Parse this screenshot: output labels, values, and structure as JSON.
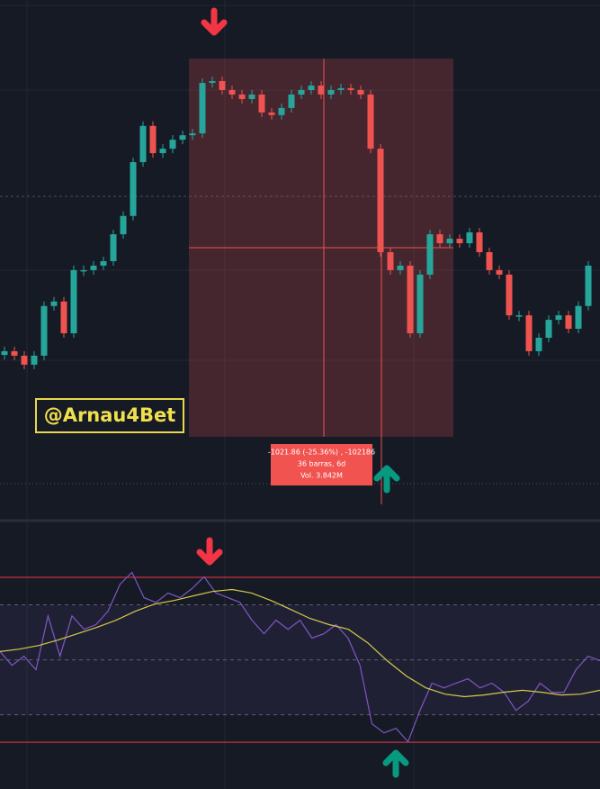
{
  "watermark": "@Arnau4Bet",
  "chart_data": [
    {
      "type": "candlestick",
      "ylim": [
        2900,
        4250
      ],
      "up_color": "#26a69a",
      "down_color": "#ef5350",
      "open": [
        3300,
        3310,
        3298,
        3274,
        3298,
        3431,
        3443,
        3358,
        3527,
        3527,
        3539,
        3551,
        3623,
        3672,
        3816,
        3913,
        3840,
        3852,
        3876,
        3888,
        3893,
        4028,
        4033,
        4009,
        3997,
        3985,
        3997,
        3949,
        3942,
        3961,
        3997,
        4009,
        4021,
        3997,
        4009,
        4014,
        4009,
        3997,
        3852,
        3575,
        3527,
        3539,
        3358,
        3515,
        3623,
        3599,
        3611,
        3599,
        3628,
        3575,
        3527,
        3515,
        3406,
        3406,
        3310,
        3346,
        3394,
        3406,
        3370,
        3431
      ],
      "close": [
        3310,
        3298,
        3274,
        3298,
        3431,
        3443,
        3358,
        3527,
        3527,
        3539,
        3551,
        3623,
        3672,
        3816,
        3913,
        3840,
        3852,
        3876,
        3888,
        3893,
        4028,
        4033,
        4009,
        3997,
        3985,
        3997,
        3949,
        3942,
        3961,
        3997,
        4009,
        4021,
        3997,
        4009,
        4014,
        4009,
        3997,
        3852,
        3575,
        3527,
        3539,
        3358,
        3515,
        3623,
        3599,
        3611,
        3599,
        3628,
        3575,
        3527,
        3515,
        3406,
        3406,
        3310,
        3346,
        3394,
        3406,
        3370,
        3431,
        3539
      ],
      "measure": {
        "from": 19,
        "to": 45,
        "high": 4093,
        "low": 3081,
        "label_lines": [
          "-1021.86 (-25.36%) , -102186",
          "36 barras, 6d",
          "Vol. 3.842M"
        ]
      }
    },
    {
      "type": "line",
      "ylim": [
        3,
        100
      ],
      "bands": [
        80,
        20
      ],
      "levels": [
        70,
        50,
        30
      ],
      "series": [
        {
          "color": "#7e57c2",
          "values": [
            53,
            48,
            51.3,
            46.4,
            66,
            51.3,
            66,
            61.1,
            62.8,
            67.7,
            77.5,
            81.8,
            72.6,
            70.9,
            74.3,
            72.6,
            75.9,
            80.2,
            74.3,
            72.6,
            70.9,
            64.4,
            59.5,
            64.4,
            61.1,
            64.4,
            57.9,
            59.5,
            62.8,
            57.9,
            48,
            26.7,
            23.4,
            25.1,
            20.2,
            31.6,
            41.5,
            39.8,
            41.5,
            43.1,
            39.8,
            41.5,
            38.2,
            31.6,
            34.9,
            41.5,
            38.2,
            38.2,
            46.4,
            51.3,
            49.7
          ]
        },
        {
          "color": "#d4c94a",
          "values": [
            53,
            53.9,
            55.2,
            57.2,
            59.5,
            61.8,
            64.4,
            67.7,
            70.3,
            71.6,
            73.3,
            74.9,
            75.6,
            74.3,
            71.6,
            68.4,
            65.1,
            62.8,
            61.1,
            56.2,
            49.7,
            44.1,
            39.8,
            37.5,
            36.6,
            37.2,
            38.2,
            38.9,
            38.2,
            37.2,
            37.5,
            38.9
          ]
        }
      ]
    }
  ]
}
